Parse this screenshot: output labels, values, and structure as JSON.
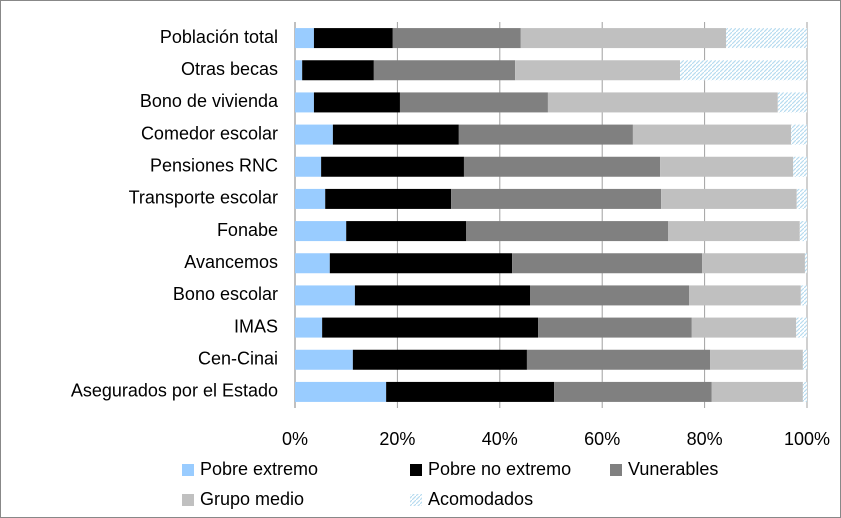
{
  "chart_data": {
    "type": "stacked_bar_horizontal",
    "categories": [
      "Población total",
      "Otras becas",
      "Bono de vivienda",
      "Comedor escolar",
      "Pensiones RNC",
      "Transporte escolar",
      "Fonabe",
      "Avancemos",
      "Bono escolar",
      "IMAS",
      "Cen-Cinai",
      "Asegurados por el Estado"
    ],
    "series": [
      {
        "name": "Pobre extremo",
        "color": "#99ccff",
        "values": [
          3.7,
          1.4,
          3.7,
          7.4,
          5.1,
          5.9,
          10.0,
          6.8,
          11.7,
          5.3,
          11.3,
          17.8
        ]
      },
      {
        "name": "Pobre no extremo",
        "color": "#000000",
        "values": [
          15.4,
          14.0,
          16.8,
          24.6,
          27.9,
          24.6,
          23.4,
          35.6,
          34.2,
          42.2,
          34.0,
          32.8
        ]
      },
      {
        "name": "Vunerables",
        "color": "#808080",
        "values": [
          25.0,
          27.6,
          28.9,
          34.0,
          38.3,
          41.0,
          39.5,
          37.1,
          31.1,
          30.0,
          35.8,
          30.8
        ]
      },
      {
        "name": "Grupo medio",
        "color": "#c0c0c0",
        "values": [
          40.1,
          32.2,
          44.9,
          30.9,
          26.0,
          26.5,
          25.7,
          20.1,
          21.8,
          20.4,
          18.1,
          17.8
        ]
      },
      {
        "name": "Acomodados",
        "color": "#b8dcf0",
        "pattern": true,
        "values": [
          15.8,
          24.8,
          5.7,
          3.1,
          2.7,
          2.0,
          1.4,
          0.4,
          1.2,
          2.1,
          0.8,
          0.8
        ]
      }
    ],
    "xlim": [
      0,
      100
    ],
    "xticks": [
      {
        "value": 0,
        "label": "0%"
      },
      {
        "value": 20,
        "label": "20%"
      },
      {
        "value": 40,
        "label": "40%"
      },
      {
        "value": 60,
        "label": "60%"
      },
      {
        "value": 80,
        "label": "80%"
      },
      {
        "value": 100,
        "label": "100%"
      }
    ],
    "grid": true
  }
}
